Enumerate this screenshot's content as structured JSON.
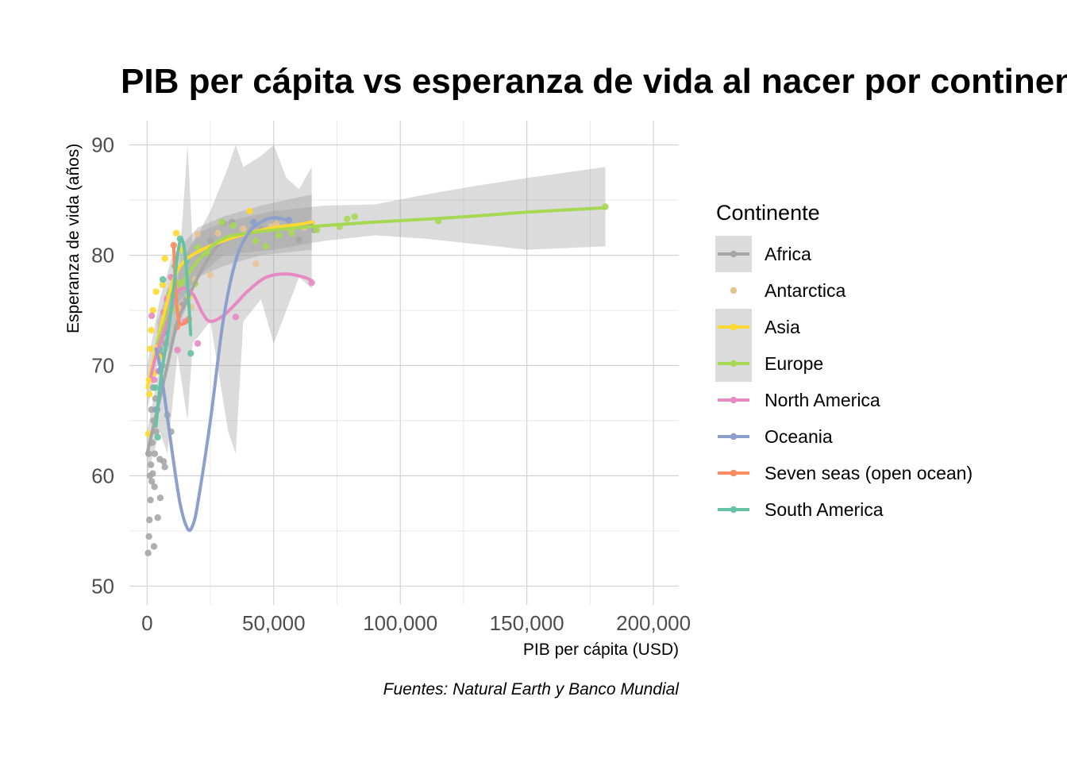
{
  "chart_data": {
    "type": "scatter",
    "title": "PIB per cápita vs esperanza de vida al nacer por continente",
    "xlabel": "PIB per cápita  (USD)",
    "ylabel": "Esperanza de vida (años)",
    "caption": "Fuentes: Natural Earth y Banco Mundial",
    "xlim": [
      -7000,
      210000
    ],
    "ylim": [
      48.3,
      92.2
    ],
    "x_ticks": [
      0,
      50000,
      100000,
      150000,
      200000
    ],
    "x_tick_labels": [
      "0",
      "50,000",
      "100,000",
      "150,000",
      "200,000"
    ],
    "y_ticks": [
      50,
      60,
      70,
      80,
      90
    ],
    "y_tick_labels": [
      "50",
      "60",
      "70",
      "80",
      "90"
    ],
    "grid": true,
    "legend": {
      "title": "Continente",
      "placement": "right",
      "entries": [
        "Africa",
        "Antarctica",
        "Asia",
        "Europe",
        "North America",
        "Oceania",
        "Seven seas (open ocean)",
        "South America"
      ]
    },
    "series": [
      {
        "name": "Africa",
        "color": "#a6a6a6",
        "points": [
          [
            400,
            53
          ],
          [
            700,
            54.5
          ],
          [
            900,
            56
          ],
          [
            1100,
            60
          ],
          [
            600,
            62
          ],
          [
            1500,
            61
          ],
          [
            2000,
            63
          ],
          [
            2500,
            65
          ],
          [
            1800,
            59.5
          ],
          [
            3000,
            62
          ],
          [
            3500,
            64
          ],
          [
            4000,
            66
          ],
          [
            5000,
            61.5
          ],
          [
            6500,
            61.3
          ],
          [
            2700,
            53.6
          ],
          [
            4200,
            56.2
          ],
          [
            5200,
            58
          ],
          [
            7000,
            60.8
          ],
          [
            8000,
            65.5
          ],
          [
            9500,
            64
          ],
          [
            6000,
            70
          ],
          [
            5400,
            71
          ],
          [
            7300,
            72
          ],
          [
            3300,
            67
          ],
          [
            1300,
            57.8
          ],
          [
            2200,
            60.2
          ],
          [
            2900,
            59
          ],
          [
            1700,
            66
          ],
          [
            3800,
            71
          ],
          [
            2400,
            68
          ],
          [
            14000,
            75.5
          ],
          [
            15500,
            76
          ],
          [
            25000,
            81.3
          ],
          [
            30000,
            82.9
          ],
          [
            33500,
            83
          ],
          [
            45000,
            82.4
          ],
          [
            60000,
            81.4
          ],
          [
            66000,
            82.3
          ]
        ],
        "smooth": [
          [
            0,
            62
          ],
          [
            2000,
            64
          ],
          [
            5000,
            67
          ],
          [
            8000,
            70
          ],
          [
            12000,
            74
          ],
          [
            16000,
            76
          ],
          [
            20000,
            78
          ],
          [
            25000,
            80
          ],
          [
            30000,
            81.3
          ],
          [
            35000,
            81.8
          ],
          [
            40000,
            82
          ],
          [
            50000,
            82.3
          ],
          [
            58000,
            82.5
          ],
          [
            65000,
            82.8
          ]
        ],
        "band": [
          [
            0,
            60,
            64
          ],
          [
            5000,
            64,
            70
          ],
          [
            8000,
            62,
            77
          ],
          [
            12000,
            71,
            77
          ],
          [
            16000,
            65,
            90
          ],
          [
            18000,
            72,
            81
          ],
          [
            25000,
            74,
            84
          ],
          [
            32000,
            64,
            88
          ],
          [
            35000,
            62,
            90
          ],
          [
            38000,
            74,
            88
          ],
          [
            45000,
            76,
            89
          ],
          [
            50000,
            72,
            90
          ],
          [
            55000,
            75,
            87
          ],
          [
            60000,
            78,
            86
          ],
          [
            65000,
            77,
            88
          ]
        ]
      },
      {
        "name": "Antarctica",
        "color": "#e5c494",
        "points": [
          [
            20000,
            81.9
          ],
          [
            28000,
            82
          ],
          [
            38000,
            82.4
          ],
          [
            49000,
            82.6
          ],
          [
            51000,
            82.8
          ],
          [
            57000,
            82.3
          ],
          [
            62000,
            82.5
          ],
          [
            65000,
            82.9
          ],
          [
            19000,
            77.8
          ],
          [
            25000,
            78.2
          ],
          [
            43000,
            79.2
          ],
          [
            8000,
            76.2
          ],
          [
            12500,
            75.2
          ],
          [
            17500,
            75.3
          ]
        ]
      },
      {
        "name": "Asia",
        "color": "#ffd92f",
        "points": [
          [
            500,
            63.8
          ],
          [
            900,
            67.4
          ],
          [
            1200,
            71.5
          ],
          [
            1600,
            73.2
          ],
          [
            2300,
            75
          ],
          [
            3500,
            76.7
          ],
          [
            7000,
            79.7
          ],
          [
            11500,
            82
          ],
          [
            14000,
            80.5
          ],
          [
            40500,
            84
          ],
          [
            65000,
            82.8
          ],
          [
            9500,
            78
          ],
          [
            16500,
            76.2
          ],
          [
            4600,
            70.8
          ],
          [
            2800,
            69.3
          ],
          [
            6100,
            77.3
          ],
          [
            800,
            68.7
          ]
        ],
        "smooth": [
          [
            0,
            68
          ],
          [
            3000,
            71
          ],
          [
            6000,
            74
          ],
          [
            10000,
            77.5
          ],
          [
            14000,
            79.3
          ],
          [
            20000,
            80.3
          ],
          [
            30000,
            81.3
          ],
          [
            40000,
            82
          ],
          [
            50000,
            82.5
          ],
          [
            60000,
            82.8
          ],
          [
            65000,
            83
          ]
        ],
        "band": [
          [
            0,
            66,
            70
          ],
          [
            5000,
            71,
            76
          ],
          [
            10000,
            75,
            80
          ],
          [
            20000,
            78,
            82.5
          ],
          [
            30000,
            79,
            83.5
          ],
          [
            45000,
            80,
            84.5
          ],
          [
            65000,
            80.5,
            85.5
          ]
        ]
      },
      {
        "name": "Europe",
        "color": "#a6d854",
        "points": [
          [
            5000,
            72.5
          ],
          [
            7000,
            74
          ],
          [
            9500,
            75
          ],
          [
            12500,
            77.5
          ],
          [
            19000,
            77.4
          ],
          [
            20000,
            80.7
          ],
          [
            24500,
            80
          ],
          [
            29500,
            83
          ],
          [
            34000,
            82.7
          ],
          [
            43000,
            81.3
          ],
          [
            47000,
            80.8
          ],
          [
            52000,
            81.8
          ],
          [
            57000,
            82
          ],
          [
            67000,
            82.3
          ],
          [
            76000,
            82.6
          ],
          [
            79000,
            83.3
          ],
          [
            82000,
            83.5
          ],
          [
            115000,
            83.1
          ],
          [
            181000,
            84.4
          ]
        ],
        "smooth": [
          [
            4000,
            72
          ],
          [
            8000,
            74.5
          ],
          [
            14000,
            77.5
          ],
          [
            22000,
            80
          ],
          [
            30000,
            81.5
          ],
          [
            40000,
            82
          ],
          [
            60000,
            82.5
          ],
          [
            90000,
            83
          ],
          [
            120000,
            83.4
          ],
          [
            150000,
            83.9
          ],
          [
            181000,
            84.3
          ]
        ],
        "band": [
          [
            4000,
            70,
            74
          ],
          [
            10000,
            72,
            78
          ],
          [
            20000,
            78,
            82
          ],
          [
            30000,
            80,
            83
          ],
          [
            50000,
            80.5,
            84
          ],
          [
            70000,
            81.3,
            84.5
          ],
          [
            90000,
            81.8,
            84.6
          ],
          [
            110000,
            81.5,
            85.5
          ],
          [
            130000,
            81,
            86.3
          ],
          [
            150000,
            80.5,
            87
          ],
          [
            181000,
            80.8,
            88
          ]
        ]
      },
      {
        "name": "North America",
        "color": "#e78ac3",
        "points": [
          [
            1800,
            74.5
          ],
          [
            2800,
            68.7
          ],
          [
            4500,
            69.5
          ],
          [
            6500,
            74.8
          ],
          [
            7800,
            76
          ],
          [
            9500,
            78
          ],
          [
            12000,
            71.4
          ],
          [
            15000,
            74
          ],
          [
            20000,
            72
          ],
          [
            35000,
            74.4
          ],
          [
            65000,
            77.5
          ],
          [
            10500,
            76.3
          ]
        ],
        "smooth": [
          [
            1500,
            69
          ],
          [
            3000,
            70.5
          ],
          [
            5000,
            72
          ],
          [
            8000,
            74
          ],
          [
            11000,
            76.2
          ],
          [
            14000,
            77
          ],
          [
            18000,
            76.5
          ],
          [
            22000,
            74.7
          ],
          [
            25000,
            74
          ],
          [
            30000,
            74.5
          ],
          [
            35000,
            75.6
          ],
          [
            40000,
            76.8
          ],
          [
            47000,
            78
          ],
          [
            55000,
            78.3
          ],
          [
            62000,
            78
          ],
          [
            65000,
            77.7
          ]
        ]
      },
      {
        "name": "Oceania",
        "color": "#8da0cb",
        "points": [
          [
            3500,
            66
          ],
          [
            5200,
            69.5
          ],
          [
            7200,
            73
          ],
          [
            42000,
            83
          ],
          [
            56000,
            83.2
          ]
        ],
        "smooth": [
          [
            3500,
            71.5
          ],
          [
            5000,
            70
          ],
          [
            7000,
            67
          ],
          [
            10000,
            62
          ],
          [
            13000,
            57.5
          ],
          [
            16000,
            55.2
          ],
          [
            18000,
            55.5
          ],
          [
            20000,
            57.5
          ],
          [
            25000,
            65
          ],
          [
            30000,
            74
          ],
          [
            35000,
            79.5
          ],
          [
            40000,
            82
          ],
          [
            45000,
            83
          ],
          [
            50000,
            83.4
          ],
          [
            55000,
            83.2
          ]
        ]
      },
      {
        "name": "Seven seas (open ocean)",
        "color": "#fc8d62",
        "points": [
          [
            10500,
            80.9
          ],
          [
            11800,
            73.5
          ],
          [
            16500,
            74.2
          ]
        ],
        "smooth": [
          [
            10500,
            80.9
          ],
          [
            11500,
            76
          ],
          [
            13000,
            73.8
          ],
          [
            16500,
            74.2
          ]
        ]
      },
      {
        "name": "South America",
        "color": "#66c2a5",
        "points": [
          [
            3200,
            68
          ],
          [
            5000,
            71.5
          ],
          [
            6200,
            77.8
          ],
          [
            7500,
            74.8
          ],
          [
            9000,
            76.5
          ],
          [
            11000,
            79
          ],
          [
            13000,
            81.5
          ],
          [
            15500,
            79.5
          ],
          [
            17200,
            71.1
          ],
          [
            4200,
            63.5
          ]
        ],
        "smooth": [
          [
            3500,
            64.5
          ],
          [
            5500,
            69
          ],
          [
            8000,
            72.5
          ],
          [
            10000,
            76
          ],
          [
            12000,
            80
          ],
          [
            13500,
            81.5
          ],
          [
            15000,
            80
          ],
          [
            16500,
            75.5
          ],
          [
            17200,
            72.8
          ]
        ]
      }
    ]
  }
}
